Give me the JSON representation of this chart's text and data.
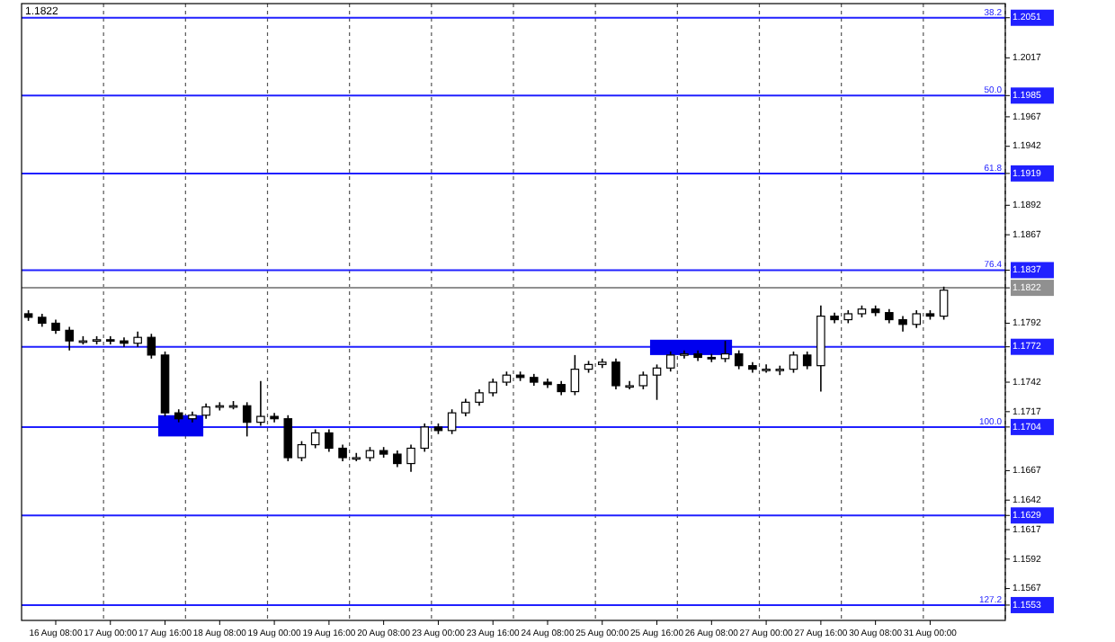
{
  "chart_data": {
    "type": "candlestick",
    "title": "1.1822",
    "color": "#000000",
    "categories": [
      null,
      null,
      "16 Aug 08:00",
      null,
      null,
      null,
      "17 Aug 00:00",
      null,
      null,
      null,
      "17 Aug 16:00",
      null,
      null,
      null,
      "18 Aug 08:00",
      null,
      null,
      null,
      "19 Aug 00:00",
      null,
      null,
      null,
      "19 Aug 16:00",
      null,
      null,
      null,
      "20 Aug 08:00",
      null,
      null,
      null,
      "23 Aug 00:00",
      null,
      null,
      null,
      "23 Aug 16:00",
      null,
      null,
      null,
      "24 Aug 08:00",
      null,
      null,
      null,
      "25 Aug 00:00",
      null,
      null,
      null,
      "25 Aug 16:00",
      null,
      null,
      null,
      "26 Aug 08:00",
      null,
      null,
      null,
      "27 Aug 00:00",
      null,
      null,
      null,
      "27 Aug 16:00",
      null,
      null,
      null,
      "30 Aug 08:00",
      null,
      null,
      null,
      "31 Aug 00:00",
      null,
      null,
      null,
      null,
      null
    ],
    "ohlc": [
      [
        1.18,
        1.1803,
        1.1794,
        1.1797
      ],
      [
        1.1797,
        1.18,
        1.1789,
        1.1792
      ],
      [
        1.1792,
        1.1795,
        1.1783,
        1.1786
      ],
      [
        1.1786,
        1.1789,
        1.1769,
        1.1777
      ],
      [
        1.1777,
        1.1781,
        1.1774,
        1.1777
      ],
      [
        1.1777,
        1.1781,
        1.1774,
        1.1778
      ],
      [
        1.1778,
        1.1781,
        1.1774,
        1.1777
      ],
      [
        1.1777,
        1.178,
        1.1772,
        1.1775
      ],
      [
        1.1775,
        1.1785,
        1.1772,
        1.178
      ],
      [
        1.178,
        1.1783,
        1.1762,
        1.1765
      ],
      [
        1.1765,
        1.1768,
        1.1713,
        1.1716
      ],
      [
        1.1716,
        1.1719,
        1.1708,
        1.1711
      ],
      [
        1.1711,
        1.1717,
        1.1708,
        1.1714
      ],
      [
        1.1714,
        1.1724,
        1.1711,
        1.1721
      ],
      [
        1.1721,
        1.1725,
        1.1718,
        1.1722
      ],
      [
        1.1722,
        1.1726,
        1.1719,
        1.1722
      ],
      [
        1.1722,
        1.1725,
        1.1696,
        1.1708
      ],
      [
        1.1708,
        1.1743,
        1.1705,
        1.1713
      ],
      [
        1.1713,
        1.1716,
        1.1708,
        1.1711
      ],
      [
        1.1711,
        1.1714,
        1.1675,
        1.1678
      ],
      [
        1.1678,
        1.1692,
        1.1675,
        1.1689
      ],
      [
        1.1689,
        1.1702,
        1.1686,
        1.1699
      ],
      [
        1.1699,
        1.1702,
        1.1683,
        1.1686
      ],
      [
        1.1686,
        1.1689,
        1.1675,
        1.1678
      ],
      [
        1.1678,
        1.1682,
        1.1675,
        1.1678
      ],
      [
        1.1678,
        1.1687,
        1.1675,
        1.1684
      ],
      [
        1.1684,
        1.1687,
        1.1678,
        1.1681
      ],
      [
        1.1681,
        1.1684,
        1.167,
        1.1673
      ],
      [
        1.1673,
        1.1689,
        1.1666,
        1.1686
      ],
      [
        1.1686,
        1.1707,
        1.1683,
        1.1704
      ],
      [
        1.1704,
        1.1707,
        1.1698,
        1.1701
      ],
      [
        1.1701,
        1.1719,
        1.1698,
        1.1716
      ],
      [
        1.1716,
        1.1728,
        1.1713,
        1.1725
      ],
      [
        1.1725,
        1.1736,
        1.1722,
        1.1733
      ],
      [
        1.1733,
        1.1745,
        1.173,
        1.1742
      ],
      [
        1.1742,
        1.1751,
        1.1739,
        1.1748
      ],
      [
        1.1748,
        1.1751,
        1.1743,
        1.1746
      ],
      [
        1.1746,
        1.1749,
        1.1739,
        1.1742
      ],
      [
        1.1742,
        1.1745,
        1.1737,
        1.174
      ],
      [
        1.174,
        1.1743,
        1.1731,
        1.1734
      ],
      [
        1.1734,
        1.1765,
        1.1731,
        1.1753
      ],
      [
        1.1753,
        1.176,
        1.175,
        1.1757
      ],
      [
        1.1757,
        1.1762,
        1.1754,
        1.1759
      ],
      [
        1.1759,
        1.1762,
        1.1736,
        1.1739
      ],
      [
        1.1739,
        1.1743,
        1.1736,
        1.1739
      ],
      [
        1.1739,
        1.1751,
        1.1736,
        1.1748
      ],
      [
        1.1748,
        1.1757,
        1.1727,
        1.1754
      ],
      [
        1.1754,
        1.1768,
        1.1751,
        1.1765
      ],
      [
        1.1765,
        1.1769,
        1.1762,
        1.1766
      ],
      [
        1.1766,
        1.1769,
        1.176,
        1.1763
      ],
      [
        1.1763,
        1.1766,
        1.1759,
        1.1762
      ],
      [
        1.1762,
        1.1777,
        1.1759,
        1.1766
      ],
      [
        1.1766,
        1.1769,
        1.1753,
        1.1756
      ],
      [
        1.1756,
        1.1759,
        1.175,
        1.1753
      ],
      [
        1.1753,
        1.1757,
        1.175,
        1.1753
      ],
      [
        1.1753,
        1.1756,
        1.1748,
        1.1753
      ],
      [
        1.1753,
        1.1768,
        1.175,
        1.1765
      ],
      [
        1.1765,
        1.1768,
        1.1753,
        1.1756
      ],
      [
        1.1756,
        1.1807,
        1.1734,
        1.1798
      ],
      [
        1.1798,
        1.1801,
        1.1792,
        1.1795
      ],
      [
        1.1795,
        1.1803,
        1.1792,
        1.18
      ],
      [
        1.18,
        1.1807,
        1.1797,
        1.1804
      ],
      [
        1.1804,
        1.1807,
        1.1798,
        1.1801
      ],
      [
        1.1801,
        1.1804,
        1.1792,
        1.1795
      ],
      [
        1.1795,
        1.1798,
        1.1785,
        1.1791
      ],
      [
        1.1791,
        1.1803,
        1.1788,
        1.18
      ],
      [
        1.18,
        1.1803,
        1.1795,
        1.1798
      ],
      [
        1.1798,
        1.1823,
        1.1795,
        1.182
      ],
      null,
      null,
      null,
      null
    ],
    "ylim": [
      1.154,
      1.2063
    ],
    "yticks": [
      1.2051,
      1.2017,
      1.1985,
      1.1967,
      1.1942,
      1.1919,
      1.1892,
      1.1867,
      1.1837,
      1.1822,
      1.1792,
      1.1772,
      1.1742,
      1.1717,
      1.1704,
      1.1667,
      1.1642,
      1.1629,
      1.1617,
      1.1592,
      1.1567,
      1.1553
    ],
    "ref_lines": [
      {
        "axis": "y",
        "value": 1.2051,
        "label": null,
        "color": "#2020ff",
        "line_style": "solid"
      },
      {
        "axis": "y",
        "value": 1.1985,
        "label": null,
        "color": "#2020ff",
        "line_style": "solid"
      },
      {
        "axis": "y",
        "value": 1.1919,
        "label": null,
        "color": "#2020ff",
        "line_style": "solid"
      },
      {
        "axis": "y",
        "value": 1.1837,
        "label": null,
        "color": "#2020ff",
        "line_style": "solid"
      },
      {
        "axis": "y",
        "value": 1.1822,
        "label": null,
        "color": "#909090",
        "line_style": "solid"
      },
      {
        "axis": "y",
        "value": 1.1772,
        "label": null,
        "color": "#2020ff",
        "line_style": "solid"
      },
      {
        "axis": "y",
        "value": 1.1704,
        "label": null,
        "color": "#2020ff",
        "line_style": "solid"
      },
      {
        "axis": "y",
        "value": 1.1629,
        "label": null,
        "color": "#2020ff",
        "line_style": "solid"
      },
      {
        "axis": "y",
        "value": 1.1553,
        "label": null,
        "color": "#2020ff",
        "line_style": "solid"
      }
    ],
    "annotations": [
      {
        "text": "38.2",
        "y": 1.2051
      },
      {
        "text": "50.0",
        "y": 1.1985
      },
      {
        "text": "61.8",
        "y": 1.1919
      },
      {
        "text": "76.4",
        "y": 1.1837
      },
      {
        "text": "100.0",
        "y": 1.1704
      },
      {
        "text": "127.2",
        "y": 1.1553
      }
    ]
  }
}
